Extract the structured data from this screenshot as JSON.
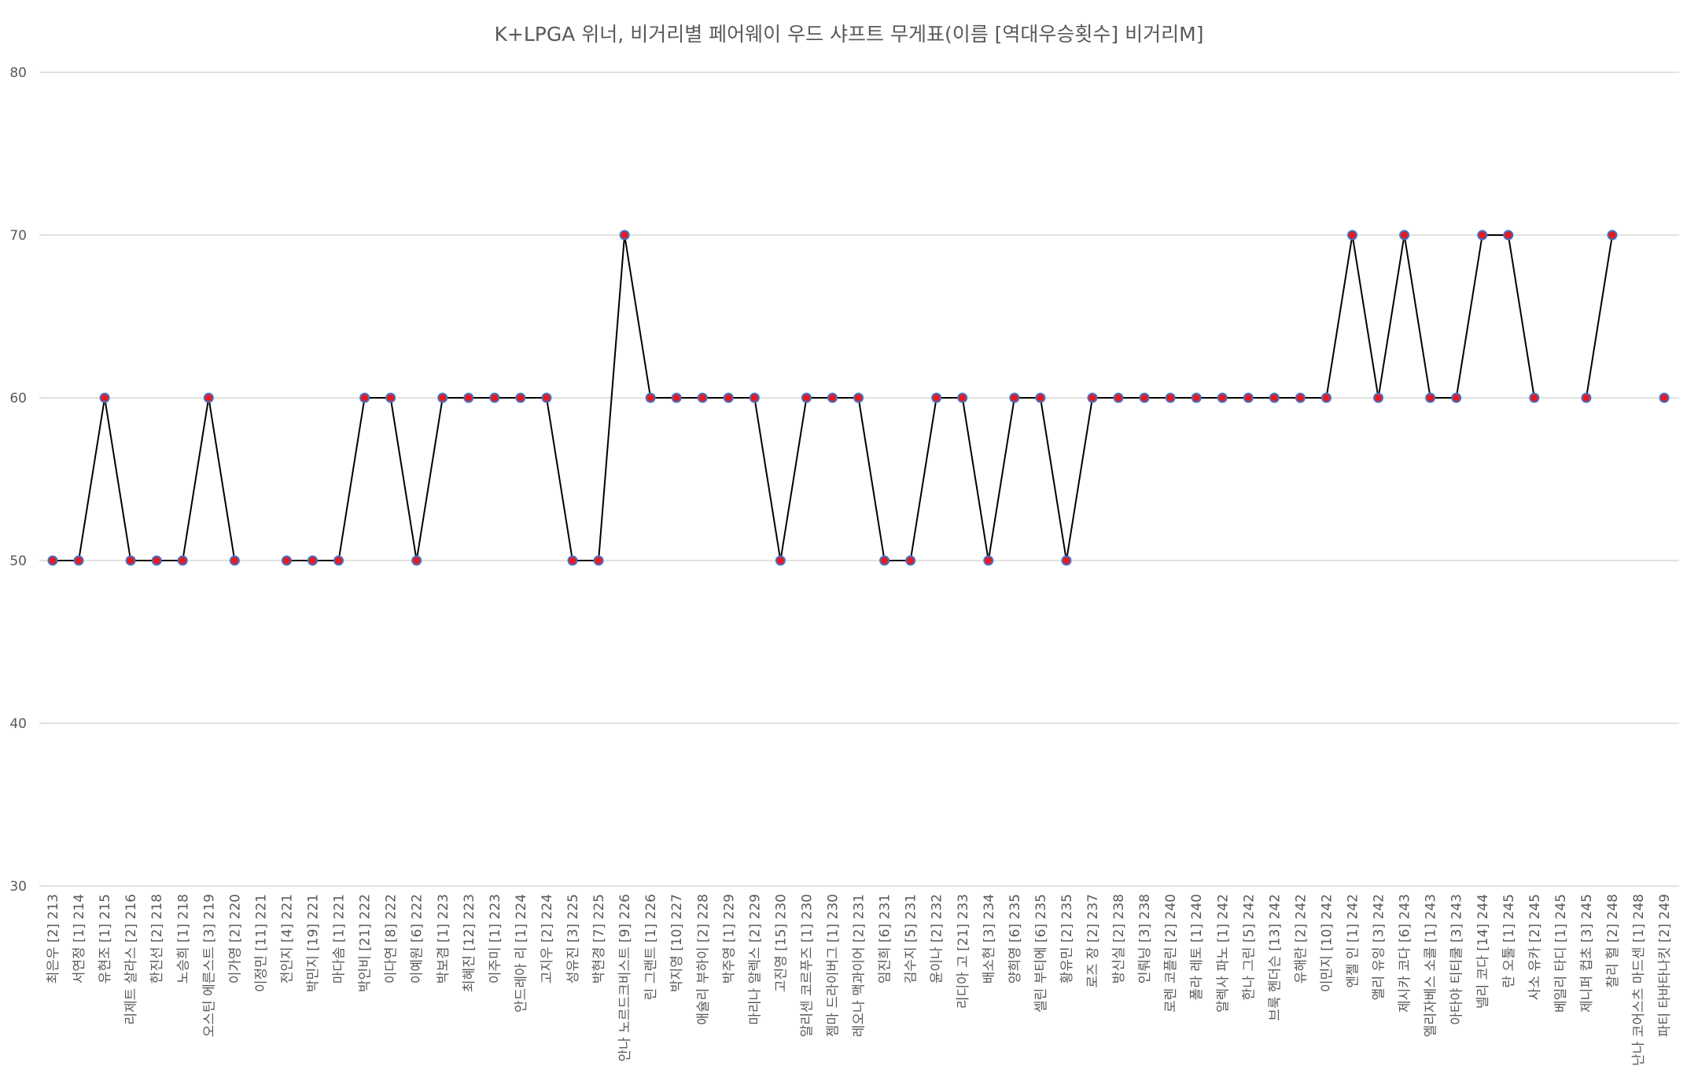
{
  "chart_data": {
    "type": "line",
    "title": "K+LPGA 위너, 비거리별 페어웨이 우드 샤프트 무게표(이름 [역대우승횟수] 비거리M]",
    "xlabel": "",
    "ylabel": "",
    "ylim": [
      30,
      80
    ],
    "yticks": [
      30,
      40,
      50,
      60,
      70,
      80
    ],
    "grid": true,
    "legend": "none",
    "colors": {
      "line": "#000000",
      "marker_fill": "#e8191f",
      "marker_edge": "#4472c4",
      "grid": "#d9d9d9",
      "text": "#595959"
    },
    "categories": [
      "최은우 [2] 213",
      "서연정 [1] 214",
      "유현조 [1] 215",
      "리제트 살라스 [2] 216",
      "한진선 [2] 218",
      "노승희 [1] 218",
      "오스틴 에른스트 [3] 219",
      "이가영 [2] 220",
      "이정민 [11] 221",
      "전인지 [4] 221",
      "박민지 [19] 221",
      "마다솜 [1] 221",
      "박인비 [21] 222",
      "이다연 [8] 222",
      "이예원 [6] 222",
      "박보겸 [1] 223",
      "최혜진 [12] 223",
      "이주미 [1] 223",
      "안드레아 리 [1] 224",
      "고지우 [2] 224",
      "성유진 [3] 225",
      "박현경 [7] 225",
      "안나 노르드크비스트 [9] 226",
      "린 그랜트 [1] 226",
      "박지영 [10] 227",
      "애슐리 부하이 [2] 228",
      "박주영 [1] 229",
      "마리나 알렉스 [2] 229",
      "고진영 [15] 230",
      "알리센 코르푸즈 [1] 230",
      "젬마 드라이버그 [1] 230",
      "레오나 맥과이어 [2] 231",
      "임진희 [6] 231",
      "김수지 [5] 231",
      "윤이나 [2] 232",
      "리디아 고 [21] 233",
      "배소현 [3] 234",
      "양희영 [6] 235",
      "셀린 부티에 [6] 235",
      "황유민 [2] 235",
      "로즈 장 [2] 237",
      "방신실 [2] 238",
      "인뤄닝 [3] 238",
      "로렌 코플린 [2] 240",
      "폴라 레토 [1] 240",
      "알렉사 파노 [1] 242",
      "한나 그린 [5] 242",
      "브룩 헨더슨 [13] 242",
      "유해란 [2] 242",
      "이민지 [10] 242",
      "엔젤 인 [1] 242",
      "앨리 유잉 [3] 242",
      "제시카 코다 [6] 243",
      "엘리자베스 소콜 [1] 243",
      "아타야 티티쿨 [3] 243",
      "넬리 코다 [14] 244",
      "란 오툴 [1] 245",
      "사소 유카 [2] 245",
      "베일리 타디 [1] 245",
      "제니퍼 컵초 [3] 245",
      "찰리 헐 [2] 248",
      "난나 코어스츠 마드센 [1] 248",
      "파티 타바타나킷 [2] 249"
    ],
    "series": [
      {
        "values": [
          50,
          50,
          60,
          50,
          50,
          50,
          60,
          50,
          null,
          50,
          50,
          50,
          60,
          60,
          50,
          60,
          60,
          60,
          60,
          60,
          50,
          50,
          70,
          60,
          60,
          60,
          60,
          60,
          50,
          60,
          60,
          60,
          50,
          50,
          60,
          60,
          50,
          60,
          60,
          50,
          60,
          60,
          60,
          60,
          60,
          60,
          60,
          60,
          60,
          60,
          70,
          60,
          70,
          60,
          60,
          70,
          70,
          60,
          null,
          60,
          70,
          null,
          60
        ]
      }
    ]
  }
}
